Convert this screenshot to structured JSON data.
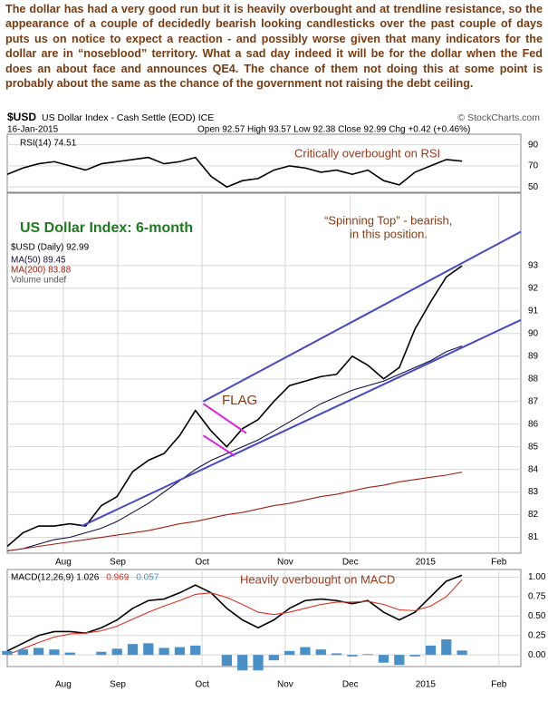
{
  "commentary": "The dollar has had a very good run but it is heavily overbought and at trendline resistance, so the appearance of a couple of decidedly bearish looking candlesticks over the past couple of days puts us on notice to expect a reaction - and possibly worse given that many indicators for the dollar are in “noseblood” territory. What a sad day indeed it will be for the dollar when the Fed does an about face and announces QE4. The chance of them not doing this at some point is probably about the same as the chance of the government not raising the debt ceiling.",
  "header": {
    "symbol": "$USD",
    "name": "US Dollar Index - Cash Settle (EOD) ICE",
    "logo": "© StockCharts.com",
    "date": "16-Jan-2015",
    "quote": "Open 92.57   High 93.57   Low 92.38   Close 92.99   Chg +0.42 (+0.46%)"
  },
  "chart_data": [
    {
      "type": "line",
      "x": [
        0,
        4,
        8,
        12,
        16,
        20,
        24,
        28,
        32,
        36,
        40,
        44,
        48,
        52,
        56,
        60,
        64,
        68,
        72,
        76,
        80,
        84,
        88,
        92,
        96,
        100,
        104,
        108,
        112,
        116
      ],
      "xlim": [
        0,
        131
      ],
      "ylim": [
        45,
        100
      ],
      "yticks": [
        50,
        70,
        90
      ],
      "grid": true,
      "series": [
        {
          "name": "RSI(14) 74.51",
          "color": "#000000",
          "values": [
            62,
            68,
            72,
            74,
            70,
            66,
            72,
            74,
            76,
            78,
            72,
            74,
            78,
            60,
            50,
            56,
            58,
            66,
            70,
            68,
            64,
            66,
            62,
            66,
            56,
            52,
            64,
            70,
            76,
            74.51
          ]
        }
      ],
      "annotations": [
        "Critically overbought on RSI"
      ]
    },
    {
      "type": "line",
      "title": "US Dollar Index: 6-month",
      "x": [
        0,
        4,
        8,
        12,
        16,
        20,
        24,
        28,
        32,
        36,
        40,
        44,
        48,
        52,
        56,
        60,
        64,
        68,
        72,
        76,
        80,
        84,
        88,
        92,
        96,
        100,
        104,
        108,
        112,
        116
      ],
      "xlim": [
        0,
        131
      ],
      "ylim": [
        80.3,
        96.2
      ],
      "yticks": [
        81,
        82,
        83,
        84,
        85,
        86,
        87,
        88,
        89,
        90,
        91,
        92,
        93
      ],
      "xticks": [
        {
          "value": 14.3,
          "label": "Aug"
        },
        {
          "value": 28.2,
          "label": "Sep"
        },
        {
          "value": 49.7,
          "label": "Oct"
        },
        {
          "value": 70.9,
          "label": "Nov"
        },
        {
          "value": 87.5,
          "label": "Dec"
        },
        {
          "value": 106.7,
          "label": "2015"
        },
        {
          "value": 125.4,
          "label": "Feb"
        }
      ],
      "grid": true,
      "series": [
        {
          "name": "$USD (Daily) 92.99",
          "color": "#000000",
          "values": [
            80.6,
            81.2,
            81.5,
            81.5,
            81.6,
            81.5,
            82.4,
            82.8,
            83.9,
            84.4,
            84.7,
            85.5,
            86.6,
            85.7,
            85.0,
            85.8,
            86.2,
            87.0,
            87.7,
            87.9,
            88.1,
            88.2,
            89.0,
            88.6,
            88.0,
            88.5,
            90.2,
            91.4,
            92.5,
            92.99
          ]
        },
        {
          "name": "MA(50) 89.45",
          "color": "#101040",
          "values": [
            80.4,
            80.5,
            80.7,
            80.9,
            81.0,
            81.2,
            81.4,
            81.7,
            82.1,
            82.5,
            83.0,
            83.5,
            84.0,
            84.4,
            84.7,
            85.0,
            85.3,
            85.7,
            86.1,
            86.5,
            86.9,
            87.2,
            87.5,
            87.7,
            87.9,
            88.2,
            88.5,
            88.8,
            89.2,
            89.45
          ]
        },
        {
          "name": "MA(200) 83.88",
          "color": "#a02010",
          "values": [
            80.4,
            80.5,
            80.6,
            80.7,
            80.8,
            80.9,
            81.0,
            81.1,
            81.2,
            81.3,
            81.45,
            81.6,
            81.7,
            81.85,
            82.0,
            82.1,
            82.25,
            82.4,
            82.5,
            82.65,
            82.8,
            82.9,
            83.05,
            83.2,
            83.3,
            83.45,
            83.55,
            83.65,
            83.75,
            83.88
          ]
        }
      ],
      "volume_label": "Volume undef",
      "trendlines": [
        {
          "x": [
            50,
            131
          ],
          "values": [
            87.0,
            94.5
          ],
          "color": "#4848c8"
        },
        {
          "x": [
            19,
            131
          ],
          "values": [
            81.5,
            90.6
          ],
          "color": "#4848c8"
        },
        {
          "x": [
            50,
            61
          ],
          "values": [
            86.9,
            85.6
          ],
          "color": "#e020e0"
        },
        {
          "x": [
            50,
            58
          ],
          "values": [
            85.5,
            84.6
          ],
          "color": "#e020e0"
        }
      ],
      "annotations": [
        "FLAG",
        "“Spinning Top” - bearish,",
        "in this position."
      ]
    },
    {
      "type": "line",
      "x": [
        0,
        4,
        8,
        12,
        16,
        20,
        24,
        28,
        32,
        36,
        40,
        44,
        48,
        52,
        56,
        60,
        64,
        68,
        72,
        76,
        80,
        84,
        88,
        92,
        96,
        100,
        104,
        108,
        112,
        116
      ],
      "xlim": [
        0,
        131
      ],
      "ylim": [
        -0.15,
        1.1
      ],
      "yticks": [
        {
          "value": 0,
          "label": "0.00"
        },
        {
          "value": 0.25,
          "label": "0.25"
        },
        {
          "value": 0.5,
          "label": "0.50"
        },
        {
          "value": 0.75,
          "label": "0.75"
        },
        {
          "value": 1,
          "label": "1.00"
        }
      ],
      "xticks": [
        {
          "value": 14.3,
          "label": "Aug"
        },
        {
          "value": 28.2,
          "label": "Sep"
        },
        {
          "value": 49.7,
          "label": "Oct"
        },
        {
          "value": 70.9,
          "label": "Nov"
        },
        {
          "value": 87.5,
          "label": "Dec"
        },
        {
          "value": 106.7,
          "label": "2015"
        },
        {
          "value": 125.4,
          "label": "Feb"
        }
      ],
      "grid": true,
      "series": [
        {
          "name": "MACD(12,26,9) 1.026",
          "color": "#000000",
          "values": [
            0.05,
            0.15,
            0.25,
            0.3,
            0.3,
            0.28,
            0.35,
            0.45,
            0.6,
            0.7,
            0.72,
            0.8,
            0.9,
            0.8,
            0.6,
            0.45,
            0.35,
            0.45,
            0.6,
            0.7,
            0.72,
            0.7,
            0.66,
            0.7,
            0.55,
            0.45,
            0.55,
            0.75,
            0.95,
            1.026
          ]
        },
        {
          "name": "0.969",
          "color": "#e03020",
          "values": [
            0.0,
            0.08,
            0.16,
            0.23,
            0.27,
            0.28,
            0.31,
            0.37,
            0.46,
            0.55,
            0.63,
            0.7,
            0.78,
            0.8,
            0.74,
            0.65,
            0.55,
            0.52,
            0.55,
            0.6,
            0.65,
            0.68,
            0.68,
            0.69,
            0.65,
            0.58,
            0.57,
            0.63,
            0.75,
            0.969
          ]
        },
        {
          "name": "0.057",
          "color": "#4a90c8",
          "style": "bar",
          "values": [
            0.05,
            0.07,
            0.09,
            0.07,
            0.03,
            0.0,
            0.04,
            0.08,
            0.14,
            0.15,
            0.09,
            0.1,
            0.12,
            0.0,
            -0.14,
            -0.2,
            -0.2,
            -0.07,
            0.05,
            0.1,
            0.07,
            0.02,
            -0.02,
            0.01,
            -0.1,
            -0.13,
            -0.02,
            0.12,
            0.2,
            0.057
          ]
        }
      ],
      "annotations": [
        "Heavily overbought on MACD"
      ]
    }
  ]
}
